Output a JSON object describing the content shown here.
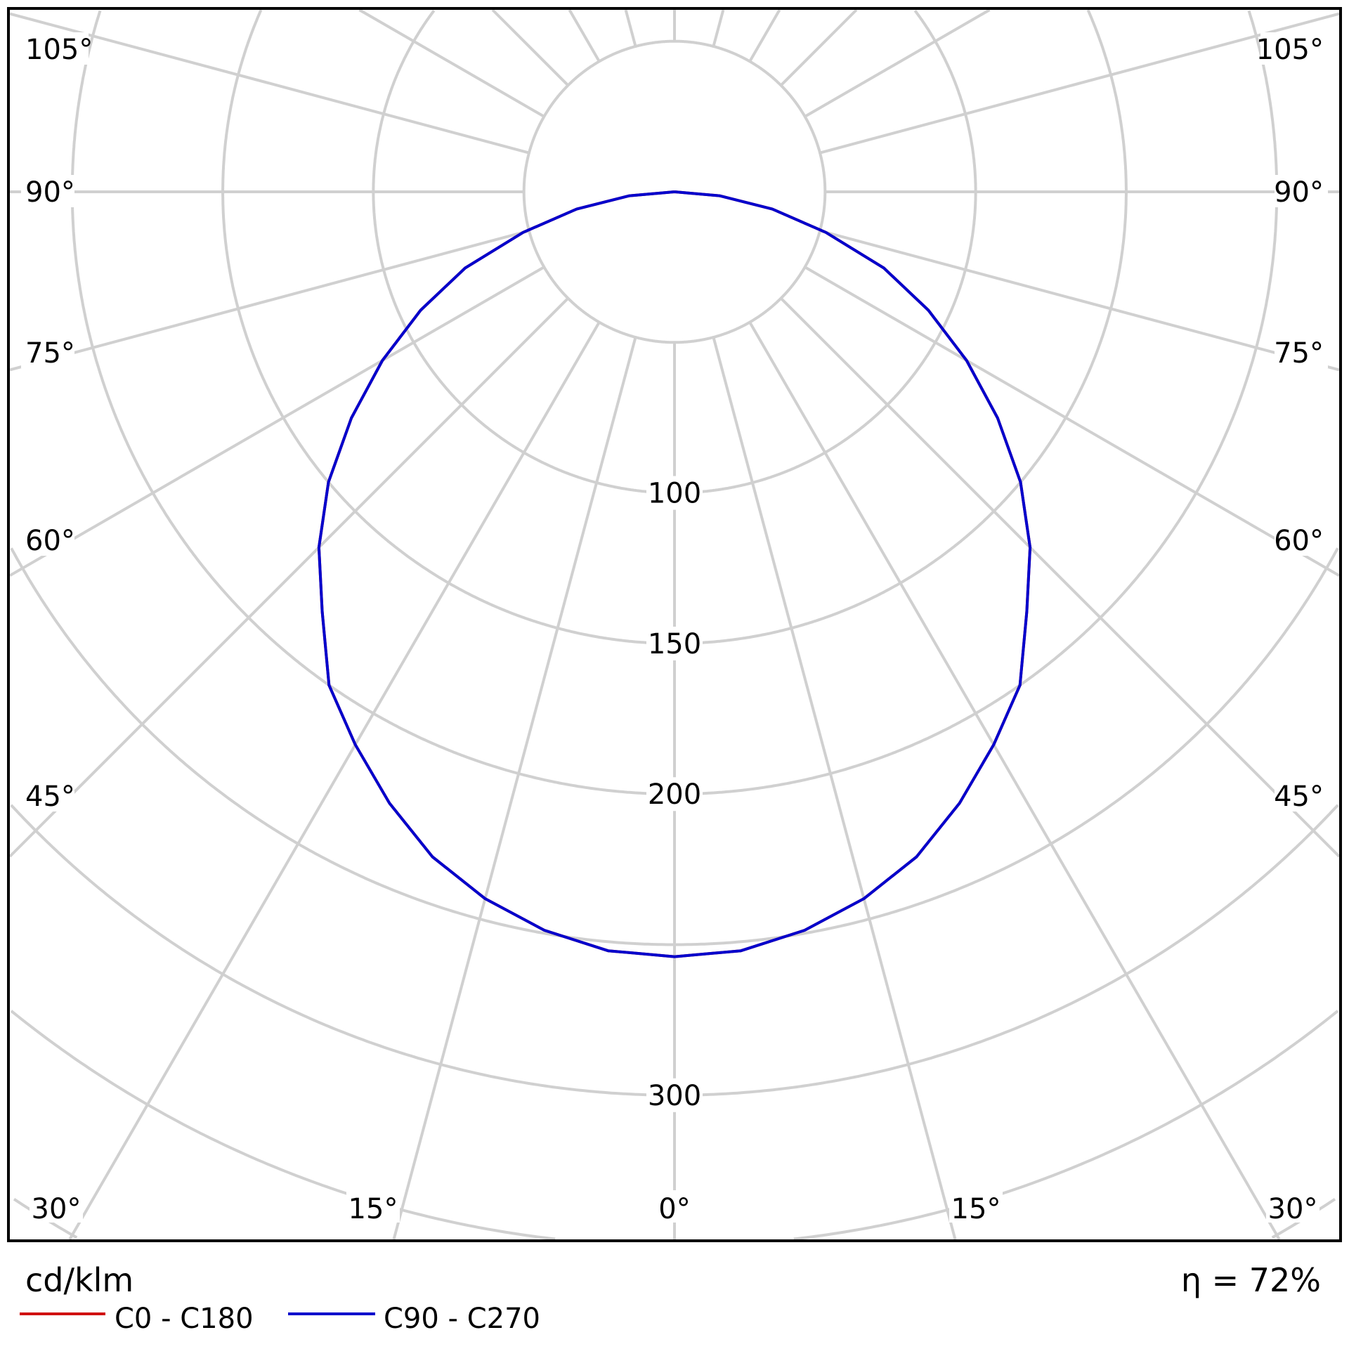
{
  "chart_data": {
    "type": "polar",
    "unit_label": "cd/klm",
    "efficiency_label": "η = 72%",
    "radial_ticks": [
      50,
      100,
      150,
      200,
      250,
      300,
      350,
      400,
      450
    ],
    "radial_tick_labels": [
      "100",
      "150",
      "200",
      "300"
    ],
    "radial_tick_label_values": [
      100,
      150,
      200,
      300
    ],
    "angle_ticks_deg": [
      0,
      15,
      30,
      45,
      60,
      75,
      90,
      105,
      120,
      135,
      150,
      165,
      180
    ],
    "angle_labels": {
      "bottom": [
        "30°",
        "15°",
        "0°",
        "15°",
        "30°"
      ],
      "bottom_values": [
        -30,
        -15,
        0,
        15,
        30
      ],
      "side": [
        "105°",
        "90°",
        "75°",
        "60°",
        "45°"
      ],
      "side_values": [
        105,
        90,
        75,
        60,
        45
      ]
    },
    "grid": true,
    "legend_placement": "bottom-left",
    "gamma_deg": [
      0,
      5,
      10,
      15,
      20,
      25,
      30,
      35,
      40,
      45,
      50,
      55,
      60,
      65,
      70,
      75,
      80,
      85,
      90
    ],
    "series": [
      {
        "name": "C0 - C180",
        "color": "#d01010",
        "values": [
          254,
          253,
          249,
          243,
          235,
          224,
          212,
          200,
          182,
          167,
          150,
          131,
          112,
          93,
          74,
          52,
          33,
          15,
          0
        ]
      },
      {
        "name": "C90 - C270",
        "color": "#0000cc",
        "values": [
          254,
          253,
          249,
          243,
          235,
          224,
          212,
          200,
          182,
          167,
          150,
          131,
          112,
          93,
          74,
          52,
          33,
          15,
          0
        ]
      }
    ]
  }
}
